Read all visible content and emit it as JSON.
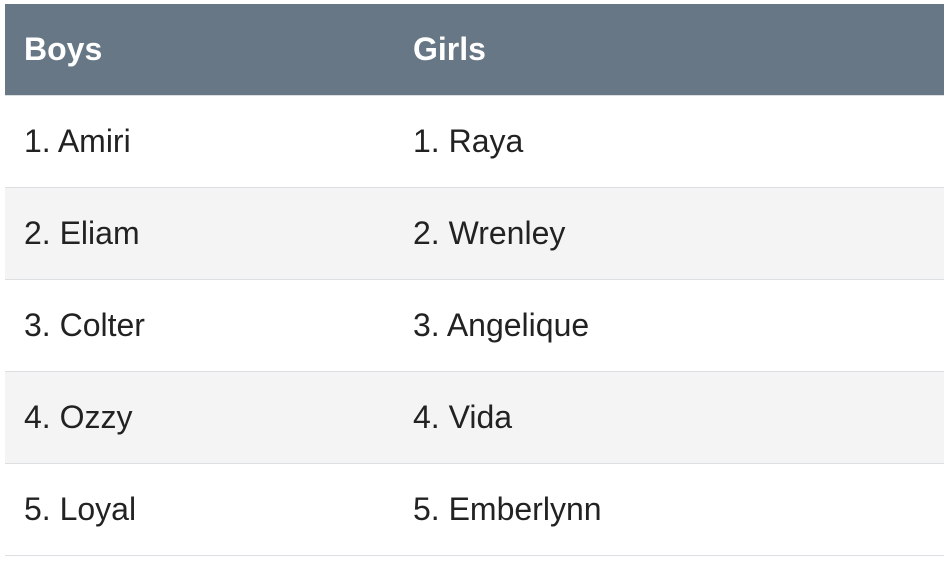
{
  "table": {
    "headers": [
      "Boys",
      "Girls"
    ],
    "rows": [
      [
        "1. Amiri",
        "1. Raya"
      ],
      [
        "2. Eliam",
        "2. Wrenley"
      ],
      [
        "3. Colter",
        "3. Angelique"
      ],
      [
        "4. Ozzy",
        "4. Vida"
      ],
      [
        "5. Loyal",
        "5. Emberlynn"
      ]
    ]
  },
  "colors": {
    "header_background": "#687785",
    "header_text": "#ffffff",
    "striped_row_background": "#f4f4f4",
    "row_divider": "#dcdfe2"
  }
}
